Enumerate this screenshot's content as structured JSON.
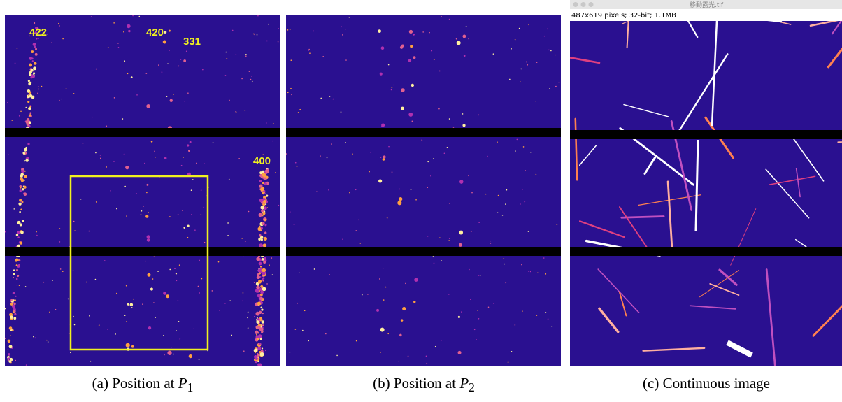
{
  "panels": [
    {
      "annotations": [
        "422",
        "420",
        "331",
        "400"
      ],
      "caption": {
        "label": "(a)",
        "text": "Position at",
        "var": "P",
        "sub": "1"
      }
    },
    {
      "caption": {
        "label": "(b)",
        "text": "Position at",
        "var": "P",
        "sub": "2"
      }
    },
    {
      "window_title": "移動露光.tif",
      "window_info": "487x619 pixels; 32-bit; 1.1MB",
      "caption": {
        "label": "(c)",
        "text": "Continuous image"
      }
    }
  ]
}
